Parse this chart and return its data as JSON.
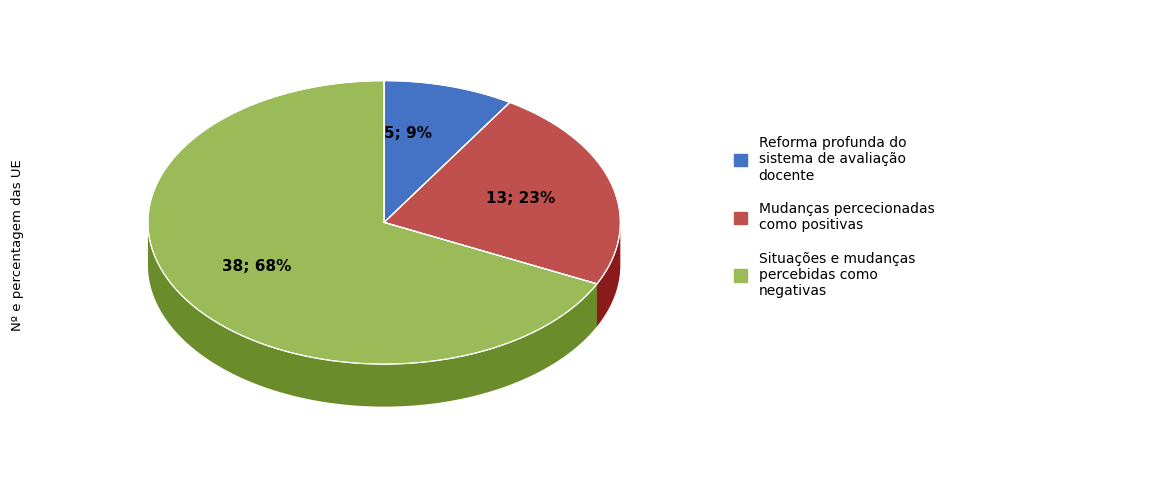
{
  "values": [
    5,
    13,
    38
  ],
  "slice_labels": [
    "5; 9%",
    "13; 23%",
    "38; 68%"
  ],
  "colors_top": [
    "#4472C4",
    "#C0504D",
    "#9BBB59"
  ],
  "colors_side": [
    "#17375E",
    "#8B1A1A",
    "#6B8C2A"
  ],
  "legend_labels": [
    "Reforma profunda do\nsistema de avaliação\ndocente",
    "Mudanças percecionadas\ncomo positivas",
    "Situações e mudanças\npercebidas como\nnegativas"
  ],
  "ylabel": "Nº e percentagem das UE",
  "startangle": 90,
  "background_color": "#FFFFFF",
  "label_fontsize": 11,
  "legend_fontsize": 10
}
